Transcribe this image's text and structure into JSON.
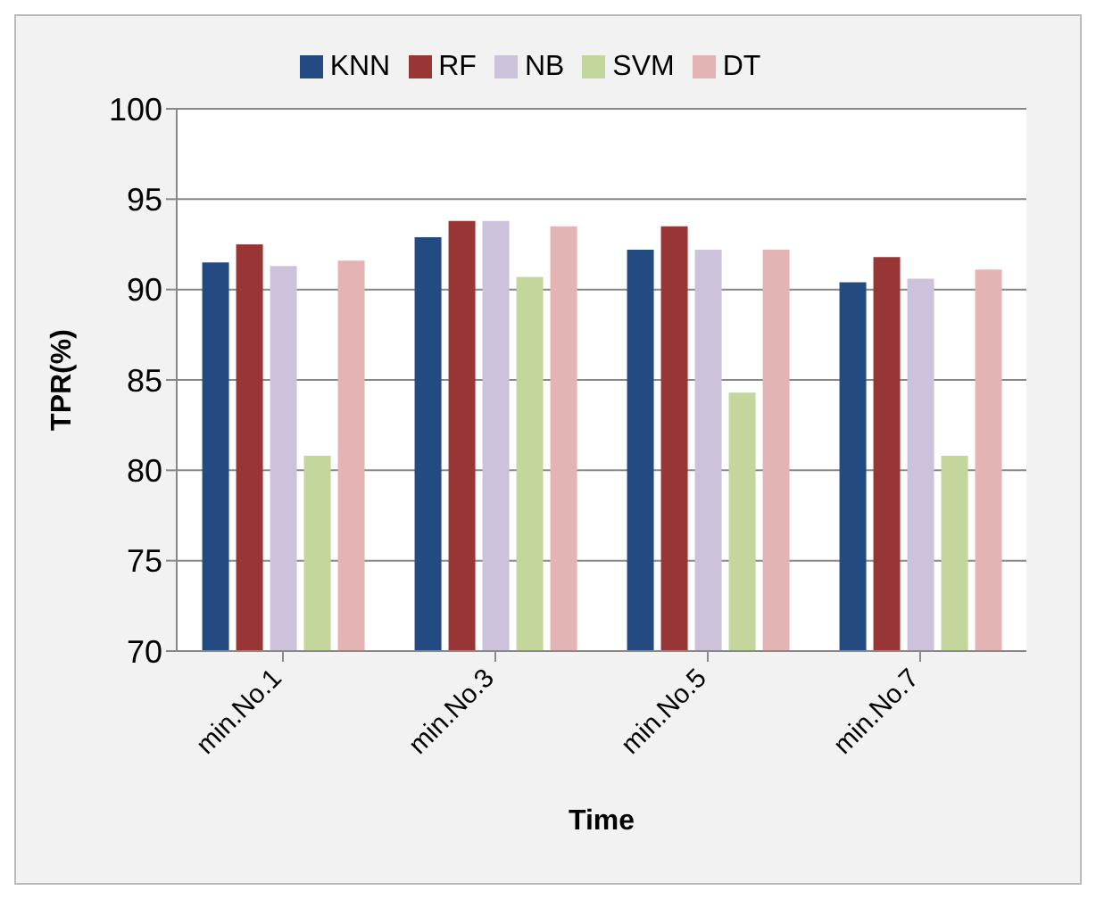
{
  "chart_data": {
    "type": "bar",
    "xlabel": "Time",
    "ylabel": "TPR(%)",
    "categories": [
      "min.No.1",
      "min.No.3",
      "min.No.5",
      "min.No.7"
    ],
    "series": [
      {
        "name": "KNN",
        "color": "#234b82",
        "values": [
          91.5,
          92.9,
          92.2,
          90.4
        ]
      },
      {
        "name": "RF",
        "color": "#973634",
        "values": [
          92.5,
          93.8,
          93.5,
          91.8
        ]
      },
      {
        "name": "NB",
        "color": "#cdc2dc",
        "values": [
          91.3,
          93.8,
          92.2,
          90.6
        ]
      },
      {
        "name": "SVM",
        "color": "#c3d69b",
        "values": [
          80.8,
          90.7,
          84.3,
          80.8
        ]
      },
      {
        "name": "DT",
        "color": "#e3b4b3",
        "values": [
          91.6,
          93.5,
          92.2,
          91.1
        ]
      }
    ],
    "ylim": [
      70,
      100
    ],
    "yticks": [
      70,
      75,
      80,
      85,
      90,
      95,
      100
    ],
    "grid": "y",
    "legend": "top"
  }
}
